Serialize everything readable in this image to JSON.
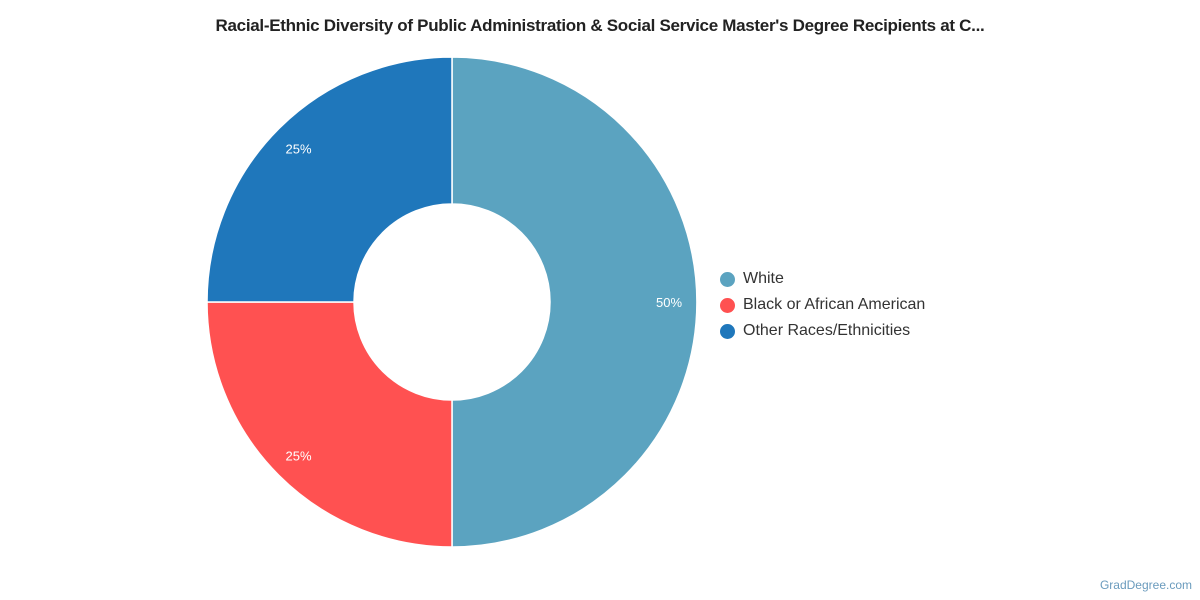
{
  "chart_data": {
    "type": "pie",
    "donut": true,
    "title": "Racial-Ethnic Diversity of Public Administration & Social Service Master's Degree Recipients at C...",
    "slices": [
      {
        "label": "White",
        "value": 50,
        "display": "50%",
        "color": "#5ba3c0"
      },
      {
        "label": "Black or African American",
        "value": 25,
        "display": "25%",
        "color": "#ff5151"
      },
      {
        "label": "Other Races/Ethnicities",
        "value": 25,
        "display": "25%",
        "color": "#1f77bb"
      }
    ],
    "legend_position": "right"
  },
  "credit": "GradDegree.com"
}
